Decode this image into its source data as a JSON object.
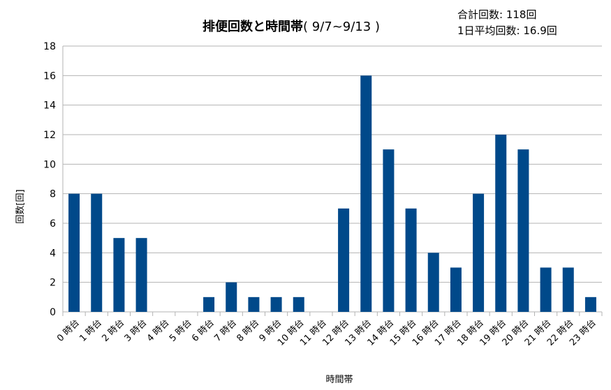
{
  "chart_data": {
    "type": "bar",
    "title": "排便回数と時間帯",
    "subtitle": "( 9/7~9/13 )",
    "stats": [
      "合計回数: 118回",
      "1日平均回数: 16.9回"
    ],
    "xlabel": "時間帯",
    "ylabel": "回数[回]",
    "ylim": [
      0,
      18
    ],
    "yticks": [
      0,
      2,
      4,
      6,
      8,
      10,
      12,
      14,
      16,
      18
    ],
    "grid": true,
    "bar_color": "#00498a",
    "categories": [
      "0 時台",
      "1 時台",
      "2 時台",
      "3 時台",
      "4 時台",
      "5 時台",
      "6 時台",
      "7 時台",
      "8 時台",
      "9 時台",
      "10 時台",
      "11 時台",
      "12 時台",
      "13 時台",
      "14 時台",
      "15 時台",
      "16 時台",
      "17 時台",
      "18 時台",
      "19 時台",
      "20 時台",
      "21 時台",
      "22 時台",
      "23 時台"
    ],
    "values": [
      8,
      8,
      5,
      5,
      0,
      0,
      1,
      2,
      1,
      1,
      1,
      0,
      7,
      16,
      11,
      7,
      4,
      3,
      8,
      12,
      11,
      3,
      3,
      1
    ]
  }
}
